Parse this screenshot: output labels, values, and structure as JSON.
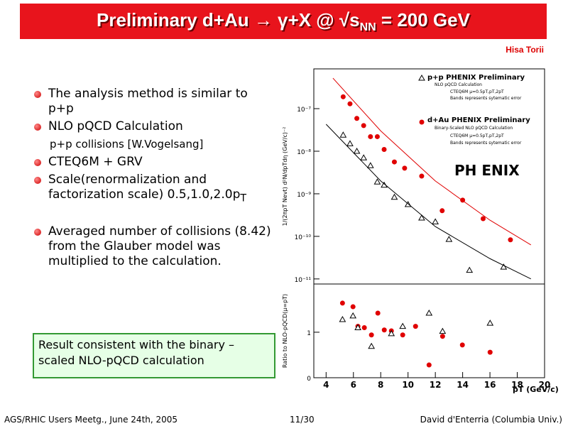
{
  "header": {
    "title": "Preliminary d+Au → γ+X @ √s",
    "title_sub": "NN",
    "title_end": " = 200 GeV",
    "author": "Hisa Torii"
  },
  "bullets": [
    {
      "text": "The analysis method is similar to p+p"
    },
    {
      "text": "NLO pQCD Calculation"
    },
    {
      "text": "p+p collisions [W.Vogelsang]",
      "indent": true
    },
    {
      "text": "CTEQ6M + GRV"
    },
    {
      "text": "Scale(renormalization and factorization scale) 0.5,1.0,2.0p",
      "sub": "T"
    },
    {
      "text": "Averaged number of collisions (8.42) from the Glauber model was multiplied to the calculation."
    }
  ],
  "note": "Result consistent with the binary – scaled NLO-pQCD calculation",
  "footer": {
    "left": "AGS/RHIC Users Meetg., June 24th, 2005",
    "center": "11/30",
    "right": "David d'Enterria (Columbia Univ.)"
  },
  "logo": "PH ENIX",
  "legend": [
    "p+p PHENIX Preliminary",
    "NLO pQCD Calculation",
    "CTEQ6M μ=0.5pT,pT,2pT",
    "Bands represents sytematic error",
    "d+Au PHENIX Preliminary",
    "Binary-Scaled NLO pQCD Calculation",
    "CTEQ6M μ=0.5pT,pT,2pT",
    "Bands represents sytematic error"
  ],
  "chart_data": [
    {
      "type": "scatter",
      "log_y": true,
      "y_label": "1/(2πpT Nevt) d²N/dpTdη (GeV/c)⁻²",
      "xlim": [
        3.1,
        20
      ],
      "ylim": [
        7.6e-12,
        8.6e-07
      ],
      "yticks": [
        {
          "value": 1e-07,
          "label": "10⁻⁷"
        },
        {
          "value": 1e-08,
          "label": "10⁻⁸"
        },
        {
          "value": 1e-09,
          "label": "10⁻⁹"
        },
        {
          "value": 1e-10,
          "label": "10⁻¹⁰"
        },
        {
          "value": 1e-11,
          "label": "10⁻¹¹"
        }
      ],
      "series": [
        {
          "name": "p+p PHENIX Preliminary",
          "color": "#000000",
          "marker": "triangle",
          "x": [
            5.25,
            5.75,
            6.25,
            6.75,
            7.25,
            7.75,
            8.25,
            9,
            10,
            11,
            12,
            13,
            14.5,
            17
          ],
          "values": [
            2.4e-08,
            1.5e-08,
            1e-08,
            7e-09,
            4.6e-09,
            1.9e-09,
            1.6e-09,
            8.3e-10,
            5.6e-10,
            2.7e-10,
            2.2e-10,
            8.5e-11,
            1.6e-11,
            1.9e-11
          ]
        },
        {
          "name": "d+Au PHENIX Preliminary",
          "color": "#e00000",
          "marker": "circle",
          "x": [
            5.25,
            5.75,
            6.25,
            6.75,
            7.25,
            7.75,
            8.25,
            9,
            9.75,
            11,
            12.5,
            14,
            15.5,
            17.5
          ],
          "values": [
            1.9e-07,
            1.3e-07,
            5.9e-08,
            4e-08,
            2.2e-08,
            2.2e-08,
            1.1e-08,
            5.6e-09,
            4e-09,
            2.6e-09,
            4e-10,
            7.1e-10,
            2.6e-10,
            8.3e-11
          ]
        },
        {
          "name": "NLO pQCD Calculation",
          "color": "#000000",
          "marker": "line",
          "x": [
            4,
            8,
            12,
            16,
            19
          ],
          "values": [
            4.3e-08,
            2e-09,
            1.7e-10,
            3e-11,
            1e-11
          ]
        },
        {
          "name": "Binary-Scaled NLO pQCD Calculation",
          "color": "#e00000",
          "marker": "line",
          "x": [
            4.5,
            8,
            12,
            16,
            19
          ],
          "values": [
            5.2e-07,
            3e-08,
            2e-09,
            2.4e-10,
            6.3e-11
          ]
        }
      ]
    },
    {
      "type": "scatter",
      "y_label": "Ratio to NLO-pQCD(μ=pT)",
      "x_label": "pT (GeV/c)",
      "xlim": [
        3.1,
        20
      ],
      "ylim": [
        0,
        2.06
      ],
      "yticks": [
        0,
        1
      ],
      "xticks": [
        4,
        6,
        8,
        10,
        12,
        14,
        16,
        18,
        20
      ],
      "series": [
        {
          "name": "d+Au PHENIX Preliminary",
          "color": "#e00000",
          "marker": "circle",
          "x": [
            5.2,
            5.97,
            6.33,
            6.8,
            7.32,
            7.79,
            8.26,
            8.78,
            9.61,
            10.55,
            11.54,
            12.53,
            13.98,
            16.01
          ],
          "values": [
            1.64,
            1.56,
            1.13,
            1.1,
            0.94,
            1.42,
            1.05,
            1.03,
            0.94,
            1.13,
            0.28,
            0.91,
            0.72,
            0.56
          ]
        },
        {
          "name": "p+p PHENIX Preliminary",
          "color": "#000000",
          "marker": "triangle",
          "x": [
            5.2,
            5.97,
            6.33,
            7.32,
            8.78,
            9.61,
            11.54,
            12.53,
            16.01
          ],
          "values": [
            1.28,
            1.36,
            1.1,
            0.69,
            0.97,
            1.13,
            1.42,
            1.02,
            1.2
          ]
        }
      ]
    }
  ]
}
